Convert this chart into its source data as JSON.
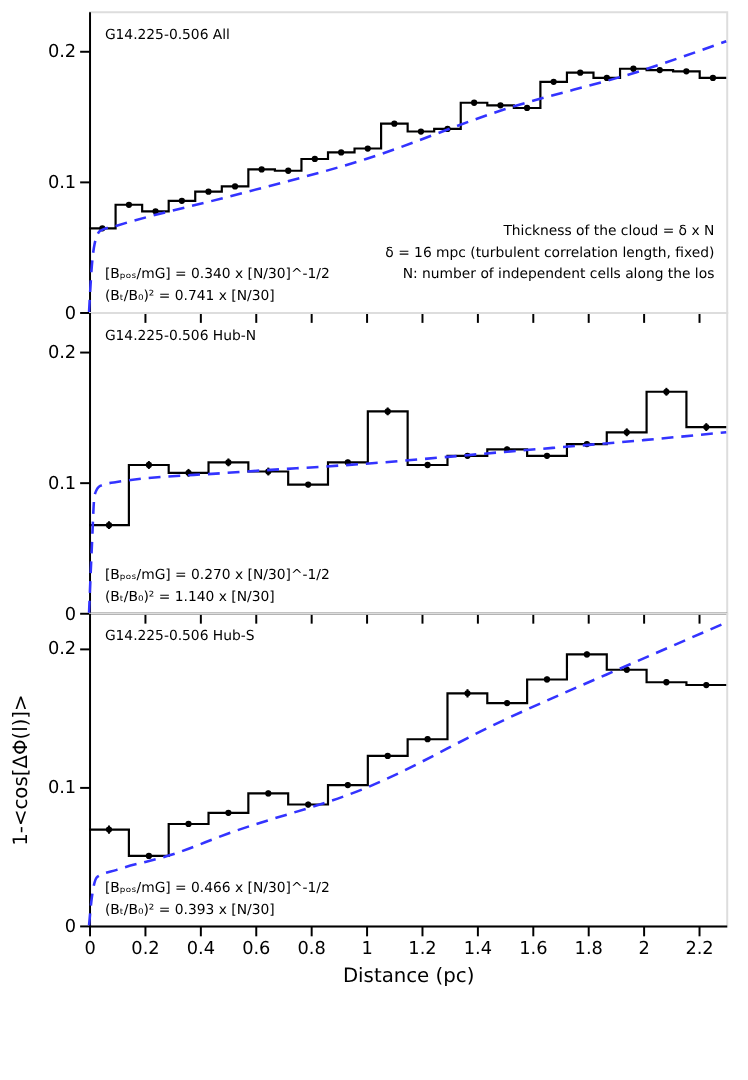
{
  "chart_data": [
    {
      "type": "histogram",
      "title": "G14.225-0.506 All",
      "xlim": [
        0,
        2.3
      ],
      "ylim": [
        0,
        0.23
      ],
      "xticks": [
        0,
        0.2,
        0.4,
        0.6,
        0.8,
        1,
        1.2,
        1.4,
        1.6,
        1.8,
        2,
        2.2
      ],
      "yticks": [
        0,
        0.1,
        0.2
      ],
      "tick_labels": "y",
      "grid": false,
      "legend": false,
      "bins": [
        0,
        0.0958,
        0.1917,
        0.2875,
        0.3833,
        0.4792,
        0.575,
        0.6708,
        0.7667,
        0.8625,
        0.9583,
        1.0542,
        1.15,
        1.2458,
        1.3417,
        1.4375,
        1.5333,
        1.6292,
        1.725,
        1.8208,
        1.9167,
        2.0125,
        2.1083,
        2.2042,
        2.3
      ],
      "series": [
        {
          "type": "histogram",
          "color": "#000000",
          "values": [
            0.064,
            0.082,
            0.077,
            0.085,
            0.092,
            0.096,
            0.109,
            0.108,
            0.117,
            0.122,
            0.125,
            0.144,
            0.138,
            0.14,
            0.16,
            0.158,
            0.156,
            0.176,
            0.183,
            0.179,
            0.186,
            0.185,
            0.184,
            0.179
          ]
        },
        {
          "type": "scatter",
          "color": "#000000",
          "marker": "circle",
          "x": [
            0.048,
            0.144,
            0.24,
            0.335,
            0.431,
            0.527,
            0.623,
            0.719,
            0.815,
            0.91,
            1.006,
            1.102,
            1.198,
            1.294,
            1.39,
            1.485,
            1.581,
            1.677,
            1.773,
            1.869,
            1.965,
            2.06,
            2.156,
            2.252
          ],
          "values": [
            0.064,
            0.082,
            0.077,
            0.085,
            0.092,
            0.096,
            0.109,
            0.108,
            0.117,
            0.122,
            0.125,
            0.144,
            0.138,
            0.14,
            0.16,
            0.158,
            0.156,
            0.176,
            0.183,
            0.179,
            0.186,
            0.185,
            0.184,
            0.179
          ]
        },
        {
          "type": "line",
          "color": "#3333ff",
          "line_style": "dashed",
          "x": [
            0,
            0.01,
            0.02,
            0.04,
            0.1,
            0.5,
            1,
            1.5,
            2,
            2.3
          ],
          "values": [
            0,
            0.035,
            0.052,
            0.062,
            0.066,
            0.088,
            0.117,
            0.155,
            0.185,
            0.207
          ]
        }
      ],
      "annotations": [
        "Thickness of the cloud = δ x N",
        "δ = 16 mpc (turbulent correlation length, fixed)",
        "N: number of independent cells along the los",
        "[Bₚₒₛ/mG] = 0.340 x [N/30]^-1/2",
        "(Bₜ/B₀)² = 0.741 x [N/30]"
      ]
    },
    {
      "type": "histogram",
      "title": "G14.225-0.506 Hub-N",
      "xlim": [
        0,
        2.3
      ],
      "ylim": [
        0,
        0.23
      ],
      "xticks": [
        0,
        0.2,
        0.4,
        0.6,
        0.8,
        1,
        1.2,
        1.4,
        1.6,
        1.8,
        2,
        2.2
      ],
      "yticks": [
        0,
        0.1,
        0.2
      ],
      "tick_labels": "y",
      "grid": false,
      "legend": false,
      "bins": [
        0,
        0.1438,
        0.2875,
        0.4313,
        0.575,
        0.7188,
        0.8625,
        1.0063,
        1.15,
        1.2938,
        1.4375,
        1.5813,
        1.725,
        1.8688,
        2.0125,
        2.1563,
        2.3
      ],
      "series": [
        {
          "type": "histogram",
          "color": "#000000",
          "values": [
            0.067,
            0.113,
            0.107,
            0.115,
            0.108,
            0.098,
            0.115,
            0.154,
            0.113,
            0.12,
            0.125,
            0.12,
            0.129,
            0.138,
            0.169,
            0.142
          ]
        },
        {
          "type": "scatter",
          "color": "#000000",
          "marker": "circle",
          "x": [
            0.072,
            0.216,
            0.359,
            0.503,
            0.647,
            0.791,
            0.934,
            1.078,
            1.222,
            1.366,
            1.509,
            1.653,
            1.797,
            1.941,
            2.084,
            2.228
          ],
          "values": [
            0.067,
            0.113,
            0.107,
            0.115,
            0.108,
            0.098,
            0.115,
            0.154,
            0.113,
            0.12,
            0.125,
            0.12,
            0.129,
            0.138,
            0.169,
            0.142
          ],
          "errors": [
            0.003,
            0.003,
            0.003,
            0.003,
            0.003,
            0.002,
            0.002,
            0.003,
            0.002,
            0.002,
            0.002,
            0.002,
            0.002,
            0.003,
            0.003,
            0.003
          ]
        },
        {
          "type": "line",
          "color": "#3333ff",
          "line_style": "dashed",
          "x": [
            0,
            0.01,
            0.02,
            0.04,
            0.1,
            0.5,
            1,
            1.5,
            2,
            2.3
          ],
          "values": [
            0,
            0.05,
            0.09,
            0.097,
            0.1,
            0.107,
            0.114,
            0.123,
            0.132,
            0.138
          ]
        }
      ],
      "annotations": [
        "[Bₚₒₛ/mG] = 0.270 x [N/30]^-1/2",
        "(Bₜ/B₀)² = 1.140 x [N/30]"
      ]
    },
    {
      "type": "histogram",
      "title": "G14.225-0.506 Hub-S",
      "xlabel": "Distance (pc)",
      "ylabel": "1-<cos[ΔΦ(l)]>",
      "xlim": [
        0,
        2.3
      ],
      "ylim": [
        0,
        0.225
      ],
      "xticks": [
        0,
        0.2,
        0.4,
        0.6,
        0.8,
        1,
        1.2,
        1.4,
        1.6,
        1.8,
        2,
        2.2
      ],
      "yticks": [
        0,
        0.1,
        0.2
      ],
      "grid": false,
      "legend": false,
      "bins": [
        0,
        0.1438,
        0.2875,
        0.4313,
        0.575,
        0.7188,
        0.8625,
        1.0063,
        1.15,
        1.2938,
        1.4375,
        1.5813,
        1.725,
        1.8688,
        2.0125,
        2.1563,
        2.3
      ],
      "series": [
        {
          "type": "histogram",
          "color": "#000000",
          "values": [
            0.069,
            0.05,
            0.073,
            0.081,
            0.095,
            0.087,
            0.101,
            0.122,
            0.134,
            0.167,
            0.16,
            0.177,
            0.195,
            0.184,
            0.175,
            0.173
          ]
        },
        {
          "type": "scatter",
          "color": "#000000",
          "marker": "circle",
          "x": [
            0.072,
            0.216,
            0.359,
            0.503,
            0.647,
            0.791,
            0.934,
            1.078,
            1.222,
            1.366,
            1.509,
            1.653,
            1.797,
            1.941,
            2.084,
            2.228
          ],
          "values": [
            0.069,
            0.05,
            0.073,
            0.081,
            0.095,
            0.087,
            0.101,
            0.122,
            0.134,
            0.167,
            0.16,
            0.177,
            0.195,
            0.184,
            0.175,
            0.173
          ],
          "errors": [
            0.003,
            0.002,
            0.002,
            0.002,
            0.002,
            0.002,
            0.002,
            0.002,
            0.002,
            0.003,
            0.002,
            0.002,
            0.002,
            0.002,
            0.002,
            0.002
          ]
        },
        {
          "type": "line",
          "color": "#3333ff",
          "line_style": "dashed",
          "x": [
            0,
            0.01,
            0.03,
            0.1,
            0.3,
            0.5,
            1,
            1.5,
            2,
            2.3
          ],
          "values": [
            0,
            0.02,
            0.035,
            0.04,
            0.051,
            0.066,
            0.099,
            0.148,
            0.192,
            0.218
          ]
        }
      ],
      "annotations": [
        "[Bₚₒₛ/mG] = 0.466 x [N/30]^-1/2",
        "(Bₜ/B₀)² = 0.393 x [N/30]"
      ]
    }
  ]
}
